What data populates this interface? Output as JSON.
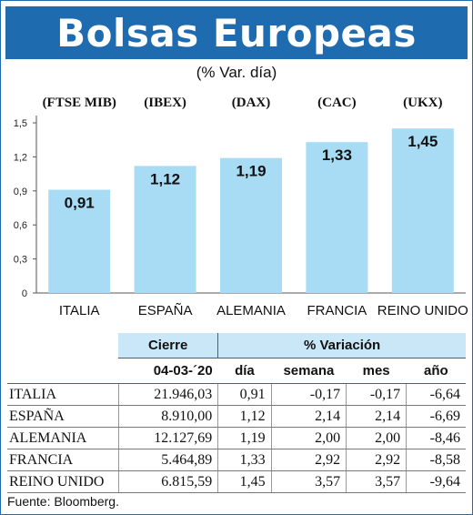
{
  "title": "Bolsas Europeas",
  "subtitle": "(% Var. día)",
  "colors": {
    "brand": "#1f6bb0",
    "bar": "#a8dcf5",
    "header": "#c9e7f6"
  },
  "chart_data": {
    "type": "bar",
    "categories": [
      "ITALIA",
      "ESPAÑA",
      "ALEMANIA",
      "FRANCIA",
      "REINO UNIDO"
    ],
    "index_labels": [
      "(FTSE MIB)",
      "(IBEX)",
      "(DAX)",
      "(CAC)",
      "(UKX)"
    ],
    "values": [
      0.91,
      1.12,
      1.19,
      1.33,
      1.45
    ],
    "value_labels": [
      "0,91",
      "1,12",
      "1,19",
      "1,33",
      "1,45"
    ],
    "yticks": [
      0,
      0.3,
      0.6,
      0.9,
      1.2,
      1.5
    ],
    "ytick_labels": [
      "0",
      "0,3",
      "0,6",
      "0,9",
      "1,2",
      "1,5"
    ],
    "ylim": [
      0,
      1.5
    ],
    "title": "Bolsas Europeas",
    "subtitle": "(% Var. día)"
  },
  "table": {
    "header_cierre": "Cierre",
    "header_variacion": "% Variación",
    "date": "04-03-´20",
    "columns": [
      "día",
      "semana",
      "mes",
      "año"
    ],
    "rows": [
      {
        "name": "ITALIA",
        "cierre": "21.946,03",
        "dia": "0,91",
        "semana": "-0,17",
        "mes": "-0,17",
        "ano": "-6,64"
      },
      {
        "name": "ESPAÑA",
        "cierre": "8.910,00",
        "dia": "1,12",
        "semana": "2,14",
        "mes": "2,14",
        "ano": "-6,69"
      },
      {
        "name": "ALEMANIA",
        "cierre": "12.127,69",
        "dia": "1,19",
        "semana": "2,00",
        "mes": "2,00",
        "ano": "-8,46"
      },
      {
        "name": "FRANCIA",
        "cierre": "5.464,89",
        "dia": "1,33",
        "semana": "2,92",
        "mes": "2,92",
        "ano": "-8,58"
      },
      {
        "name": "REINO UNIDO",
        "cierre": "6.815,59",
        "dia": "1,45",
        "semana": "3,57",
        "mes": "3,57",
        "ano": "-9,64"
      }
    ]
  },
  "source": "Fuente: Bloomberg."
}
